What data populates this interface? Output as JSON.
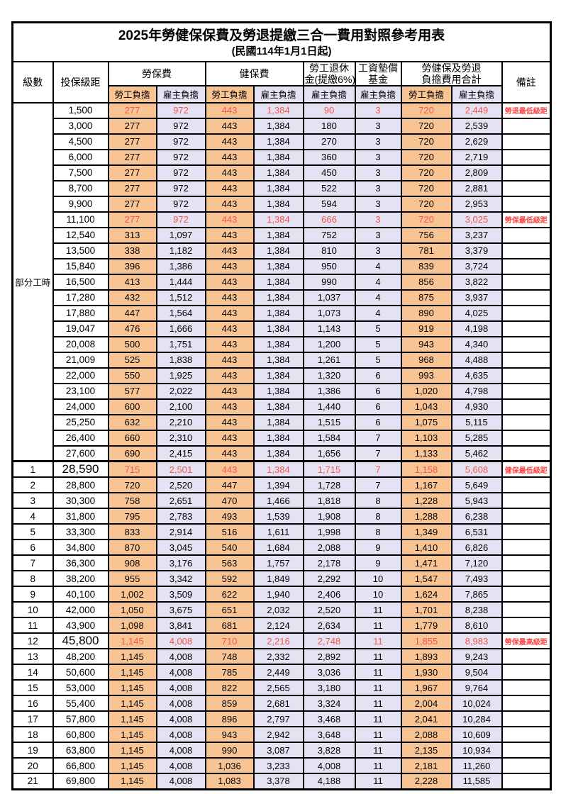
{
  "title": "2025年勞健保保費及勞退提繳三合一費用對照參考用表",
  "subtitle": "(民國114年1月1日起)",
  "columns": {
    "level": "級數",
    "bracket": "投保級距",
    "labor": "勞保費",
    "health": "健保費",
    "pension_line1": "勞工退休",
    "pension_line2": "金(提繳6%)",
    "fund_line1": "工資墊償",
    "fund_line2": "基金",
    "total_line1": "勞健保及勞退",
    "total_line2": "負擔費用合計",
    "note": "備註",
    "employee_share": "勞工負擔",
    "employer_share": "雇主負擔"
  },
  "part_time_label": "部分工時",
  "part_time_rowspan": 23,
  "colors": {
    "employee_bg": "#F9C494",
    "employer_bg": "#E4E2F3",
    "highlight_text": "#F5554C",
    "note_text": "#FF4444"
  },
  "rows": [
    {
      "level": "",
      "bracket": "1,500",
      "labor_emp": "277",
      "labor_er": "972",
      "health_emp": "443",
      "health_er": "1,384",
      "pension_er": "90",
      "fund_er": "3",
      "total_emp": "720",
      "total_er": "2,449",
      "note": "勞退最低級距",
      "red": true
    },
    {
      "level": "",
      "bracket": "3,000",
      "labor_emp": "277",
      "labor_er": "972",
      "health_emp": "443",
      "health_er": "1,384",
      "pension_er": "180",
      "fund_er": "3",
      "total_emp": "720",
      "total_er": "2,539",
      "note": ""
    },
    {
      "level": "",
      "bracket": "4,500",
      "labor_emp": "277",
      "labor_er": "972",
      "health_emp": "443",
      "health_er": "1,384",
      "pension_er": "270",
      "fund_er": "3",
      "total_emp": "720",
      "total_er": "2,629",
      "note": ""
    },
    {
      "level": "",
      "bracket": "6,000",
      "labor_emp": "277",
      "labor_er": "972",
      "health_emp": "443",
      "health_er": "1,384",
      "pension_er": "360",
      "fund_er": "3",
      "total_emp": "720",
      "total_er": "2,719",
      "note": ""
    },
    {
      "level": "",
      "bracket": "7,500",
      "labor_emp": "277",
      "labor_er": "972",
      "health_emp": "443",
      "health_er": "1,384",
      "pension_er": "450",
      "fund_er": "3",
      "total_emp": "720",
      "total_er": "2,809",
      "note": ""
    },
    {
      "level": "",
      "bracket": "8,700",
      "labor_emp": "277",
      "labor_er": "972",
      "health_emp": "443",
      "health_er": "1,384",
      "pension_er": "522",
      "fund_er": "3",
      "total_emp": "720",
      "total_er": "2,881",
      "note": ""
    },
    {
      "level": "",
      "bracket": "9,900",
      "labor_emp": "277",
      "labor_er": "972",
      "health_emp": "443",
      "health_er": "1,384",
      "pension_er": "594",
      "fund_er": "3",
      "total_emp": "720",
      "total_er": "2,953",
      "note": ""
    },
    {
      "level": "",
      "bracket": "11,100",
      "labor_emp": "277",
      "labor_er": "972",
      "health_emp": "443",
      "health_er": "1,384",
      "pension_er": "666",
      "fund_er": "3",
      "total_emp": "720",
      "total_er": "3,025",
      "note": "勞保最低級距",
      "red": true
    },
    {
      "level": "",
      "bracket": "12,540",
      "labor_emp": "313",
      "labor_er": "1,097",
      "health_emp": "443",
      "health_er": "1,384",
      "pension_er": "752",
      "fund_er": "3",
      "total_emp": "756",
      "total_er": "3,237",
      "note": ""
    },
    {
      "level": "",
      "bracket": "13,500",
      "labor_emp": "338",
      "labor_er": "1,182",
      "health_emp": "443",
      "health_er": "1,384",
      "pension_er": "810",
      "fund_er": "3",
      "total_emp": "781",
      "total_er": "3,379",
      "note": ""
    },
    {
      "level": "",
      "bracket": "15,840",
      "labor_emp": "396",
      "labor_er": "1,386",
      "health_emp": "443",
      "health_er": "1,384",
      "pension_er": "950",
      "fund_er": "4",
      "total_emp": "839",
      "total_er": "3,724",
      "note": ""
    },
    {
      "level": "",
      "bracket": "16,500",
      "labor_emp": "413",
      "labor_er": "1,444",
      "health_emp": "443",
      "health_er": "1,384",
      "pension_er": "990",
      "fund_er": "4",
      "total_emp": "856",
      "total_er": "3,822",
      "note": ""
    },
    {
      "level": "",
      "bracket": "17,280",
      "labor_emp": "432",
      "labor_er": "1,512",
      "health_emp": "443",
      "health_er": "1,384",
      "pension_er": "1,037",
      "fund_er": "4",
      "total_emp": "875",
      "total_er": "3,937",
      "note": ""
    },
    {
      "level": "",
      "bracket": "17,880",
      "labor_emp": "447",
      "labor_er": "1,564",
      "health_emp": "443",
      "health_er": "1,384",
      "pension_er": "1,073",
      "fund_er": "4",
      "total_emp": "890",
      "total_er": "4,025",
      "note": ""
    },
    {
      "level": "",
      "bracket": "19,047",
      "labor_emp": "476",
      "labor_er": "1,666",
      "health_emp": "443",
      "health_er": "1,384",
      "pension_er": "1,143",
      "fund_er": "5",
      "total_emp": "919",
      "total_er": "4,198",
      "note": ""
    },
    {
      "level": "",
      "bracket": "20,008",
      "labor_emp": "500",
      "labor_er": "1,751",
      "health_emp": "443",
      "health_er": "1,384",
      "pension_er": "1,200",
      "fund_er": "5",
      "total_emp": "943",
      "total_er": "4,340",
      "note": ""
    },
    {
      "level": "",
      "bracket": "21,009",
      "labor_emp": "525",
      "labor_er": "1,838",
      "health_emp": "443",
      "health_er": "1,384",
      "pension_er": "1,261",
      "fund_er": "5",
      "total_emp": "968",
      "total_er": "4,488",
      "note": ""
    },
    {
      "level": "",
      "bracket": "22,000",
      "labor_emp": "550",
      "labor_er": "1,925",
      "health_emp": "443",
      "health_er": "1,384",
      "pension_er": "1,320",
      "fund_er": "6",
      "total_emp": "993",
      "total_er": "4,635",
      "note": ""
    },
    {
      "level": "",
      "bracket": "23,100",
      "labor_emp": "577",
      "labor_er": "2,022",
      "health_emp": "443",
      "health_er": "1,384",
      "pension_er": "1,386",
      "fund_er": "6",
      "total_emp": "1,020",
      "total_er": "4,798",
      "note": ""
    },
    {
      "level": "",
      "bracket": "24,000",
      "labor_emp": "600",
      "labor_er": "2,100",
      "health_emp": "443",
      "health_er": "1,384",
      "pension_er": "1,440",
      "fund_er": "6",
      "total_emp": "1,043",
      "total_er": "4,930",
      "note": ""
    },
    {
      "level": "",
      "bracket": "25,250",
      "labor_emp": "632",
      "labor_er": "2,210",
      "health_emp": "443",
      "health_er": "1,384",
      "pension_er": "1,515",
      "fund_er": "6",
      "total_emp": "1,075",
      "total_er": "5,115",
      "note": ""
    },
    {
      "level": "",
      "bracket": "26,400",
      "labor_emp": "660",
      "labor_er": "2,310",
      "health_emp": "443",
      "health_er": "1,384",
      "pension_er": "1,584",
      "fund_er": "7",
      "total_emp": "1,103",
      "total_er": "5,285",
      "note": ""
    },
    {
      "level": "",
      "bracket": "27,600",
      "labor_emp": "690",
      "labor_er": "2,415",
      "health_emp": "443",
      "health_er": "1,384",
      "pension_er": "1,656",
      "fund_er": "7",
      "total_emp": "1,133",
      "total_er": "5,462",
      "note": ""
    },
    {
      "level": "1",
      "bracket": "28,590",
      "labor_emp": "715",
      "labor_er": "2,501",
      "health_emp": "443",
      "health_er": "1,384",
      "pension_er": "1,715",
      "fund_er": "7",
      "total_emp": "1,158",
      "total_er": "5,608",
      "note": "健保最低級距",
      "red": true,
      "big": true
    },
    {
      "level": "2",
      "bracket": "28,800",
      "labor_emp": "720",
      "labor_er": "2,520",
      "health_emp": "447",
      "health_er": "1,394",
      "pension_er": "1,728",
      "fund_er": "7",
      "total_emp": "1,167",
      "total_er": "5,649",
      "note": ""
    },
    {
      "level": "3",
      "bracket": "30,300",
      "labor_emp": "758",
      "labor_er": "2,651",
      "health_emp": "470",
      "health_er": "1,466",
      "pension_er": "1,818",
      "fund_er": "8",
      "total_emp": "1,228",
      "total_er": "5,943",
      "note": ""
    },
    {
      "level": "4",
      "bracket": "31,800",
      "labor_emp": "795",
      "labor_er": "2,783",
      "health_emp": "493",
      "health_er": "1,539",
      "pension_er": "1,908",
      "fund_er": "8",
      "total_emp": "1,288",
      "total_er": "6,238",
      "note": ""
    },
    {
      "level": "5",
      "bracket": "33,300",
      "labor_emp": "833",
      "labor_er": "2,914",
      "health_emp": "516",
      "health_er": "1,611",
      "pension_er": "1,998",
      "fund_er": "8",
      "total_emp": "1,349",
      "total_er": "6,531",
      "note": ""
    },
    {
      "level": "6",
      "bracket": "34,800",
      "labor_emp": "870",
      "labor_er": "3,045",
      "health_emp": "540",
      "health_er": "1,684",
      "pension_er": "2,088",
      "fund_er": "9",
      "total_emp": "1,410",
      "total_er": "6,826",
      "note": ""
    },
    {
      "level": "7",
      "bracket": "36,300",
      "labor_emp": "908",
      "labor_er": "3,176",
      "health_emp": "563",
      "health_er": "1,757",
      "pension_er": "2,178",
      "fund_er": "9",
      "total_emp": "1,471",
      "total_er": "7,120",
      "note": ""
    },
    {
      "level": "8",
      "bracket": "38,200",
      "labor_emp": "955",
      "labor_er": "3,342",
      "health_emp": "592",
      "health_er": "1,849",
      "pension_er": "2,292",
      "fund_er": "10",
      "total_emp": "1,547",
      "total_er": "7,493",
      "note": ""
    },
    {
      "level": "9",
      "bracket": "40,100",
      "labor_emp": "1,002",
      "labor_er": "3,509",
      "health_emp": "622",
      "health_er": "1,940",
      "pension_er": "2,406",
      "fund_er": "10",
      "total_emp": "1,624",
      "total_er": "7,865",
      "note": ""
    },
    {
      "level": "10",
      "bracket": "42,000",
      "labor_emp": "1,050",
      "labor_er": "3,675",
      "health_emp": "651",
      "health_er": "2,032",
      "pension_er": "2,520",
      "fund_er": "11",
      "total_emp": "1,701",
      "total_er": "8,238",
      "note": ""
    },
    {
      "level": "11",
      "bracket": "43,900",
      "labor_emp": "1,098",
      "labor_er": "3,841",
      "health_emp": "681",
      "health_er": "2,124",
      "pension_er": "2,634",
      "fund_er": "11",
      "total_emp": "1,779",
      "total_er": "8,610",
      "note": ""
    },
    {
      "level": "12",
      "bracket": "45,800",
      "labor_emp": "1,145",
      "labor_er": "4,008",
      "health_emp": "710",
      "health_er": "2,216",
      "pension_er": "2,748",
      "fund_er": "11",
      "total_emp": "1,855",
      "total_er": "8,983",
      "note": "勞保最高級距",
      "red": true,
      "big": true
    },
    {
      "level": "13",
      "bracket": "48,200",
      "labor_emp": "1,145",
      "labor_er": "4,008",
      "health_emp": "748",
      "health_er": "2,332",
      "pension_er": "2,892",
      "fund_er": "11",
      "total_emp": "1,893",
      "total_er": "9,243",
      "note": ""
    },
    {
      "level": "14",
      "bracket": "50,600",
      "labor_emp": "1,145",
      "labor_er": "4,008",
      "health_emp": "785",
      "health_er": "2,449",
      "pension_er": "3,036",
      "fund_er": "11",
      "total_emp": "1,930",
      "total_er": "9,504",
      "note": ""
    },
    {
      "level": "15",
      "bracket": "53,000",
      "labor_emp": "1,145",
      "labor_er": "4,008",
      "health_emp": "822",
      "health_er": "2,565",
      "pension_er": "3,180",
      "fund_er": "11",
      "total_emp": "1,967",
      "total_er": "9,764",
      "note": ""
    },
    {
      "level": "16",
      "bracket": "55,400",
      "labor_emp": "1,145",
      "labor_er": "4,008",
      "health_emp": "859",
      "health_er": "2,681",
      "pension_er": "3,324",
      "fund_er": "11",
      "total_emp": "2,004",
      "total_er": "10,024",
      "note": ""
    },
    {
      "level": "17",
      "bracket": "57,800",
      "labor_emp": "1,145",
      "labor_er": "4,008",
      "health_emp": "896",
      "health_er": "2,797",
      "pension_er": "3,468",
      "fund_er": "11",
      "total_emp": "2,041",
      "total_er": "10,284",
      "note": ""
    },
    {
      "level": "18",
      "bracket": "60,800",
      "labor_emp": "1,145",
      "labor_er": "4,008",
      "health_emp": "943",
      "health_er": "2,942",
      "pension_er": "3,648",
      "fund_er": "11",
      "total_emp": "2,088",
      "total_er": "10,609",
      "note": ""
    },
    {
      "level": "19",
      "bracket": "63,800",
      "labor_emp": "1,145",
      "labor_er": "4,008",
      "health_emp": "990",
      "health_er": "3,087",
      "pension_er": "3,828",
      "fund_er": "11",
      "total_emp": "2,135",
      "total_er": "10,934",
      "note": ""
    },
    {
      "level": "20",
      "bracket": "66,800",
      "labor_emp": "1,145",
      "labor_er": "4,008",
      "health_emp": "1,036",
      "health_er": "3,233",
      "pension_er": "4,008",
      "fund_er": "11",
      "total_emp": "2,181",
      "total_er": "11,260",
      "note": ""
    },
    {
      "level": "21",
      "bracket": "69,800",
      "labor_emp": "1,145",
      "labor_er": "4,008",
      "health_emp": "1,083",
      "health_er": "3,378",
      "pension_er": "4,188",
      "fund_er": "11",
      "total_emp": "2,228",
      "total_er": "11,585",
      "note": ""
    }
  ]
}
